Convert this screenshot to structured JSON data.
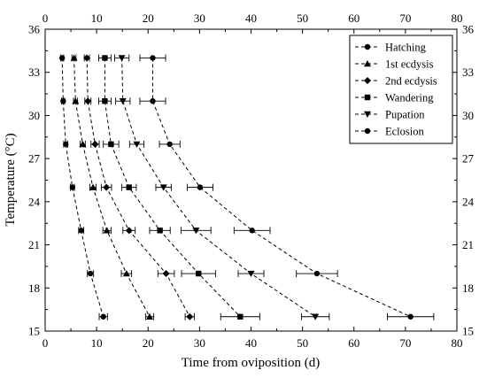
{
  "chart_data": {
    "type": "scatter",
    "xlabel": "Time from oviposition (d)",
    "ylabel": "Temperature (°C)",
    "xlim": [
      0,
      80
    ],
    "ylim": [
      15,
      36
    ],
    "x_ticks": [
      "0",
      "10",
      "20",
      "30",
      "40",
      "50",
      "60",
      "70",
      "80"
    ],
    "y_ticks": [
      "15",
      "18",
      "21",
      "24",
      "27",
      "30",
      "33",
      "36"
    ],
    "mirror_axes": true,
    "grid": false,
    "legend_position": "top-right",
    "y": [
      34,
      31,
      28,
      25,
      22,
      19,
      16
    ],
    "series": [
      {
        "name": "Hatching",
        "marker": "circle",
        "x": [
          3.3,
          3.5,
          4.0,
          5.3,
          7.0,
          8.8,
          11.3
        ],
        "xerr": [
          0.3,
          0.3,
          0.4,
          0.4,
          0.5,
          0.6,
          0.8
        ]
      },
      {
        "name": "1st ecdysis",
        "marker": "triangle-up",
        "x": [
          5.6,
          5.9,
          7.3,
          9.3,
          12.0,
          15.8,
          20.3
        ],
        "xerr": [
          0.4,
          0.4,
          0.5,
          0.6,
          0.8,
          1.0,
          0.8
        ]
      },
      {
        "name": "2nd ecdysis",
        "marker": "diamond",
        "x": [
          8.1,
          8.3,
          9.7,
          11.9,
          16.3,
          23.5,
          28.1
        ],
        "xerr": [
          0.5,
          0.6,
          0.8,
          1.0,
          1.2,
          1.6,
          0.9
        ]
      },
      {
        "name": "Wandering",
        "marker": "square",
        "x": [
          11.6,
          11.6,
          12.8,
          16.3,
          22.3,
          29.8,
          37.9
        ],
        "xerr": [
          1.2,
          1.2,
          1.5,
          1.4,
          2.0,
          3.3,
          3.8
        ]
      },
      {
        "name": "Pupation",
        "marker": "triangle-down",
        "x": [
          14.9,
          15.1,
          17.8,
          23.0,
          29.3,
          40.0,
          52.5
        ],
        "xerr": [
          1.4,
          1.4,
          1.4,
          1.5,
          2.9,
          2.5,
          2.7
        ]
      },
      {
        "name": "Eclosion",
        "marker": "circle",
        "x": [
          20.9,
          20.9,
          24.2,
          30.1,
          40.2,
          52.8,
          71.0
        ],
        "xerr": [
          2.5,
          2.5,
          2.0,
          2.5,
          3.5,
          4.0,
          4.5
        ]
      }
    ]
  }
}
